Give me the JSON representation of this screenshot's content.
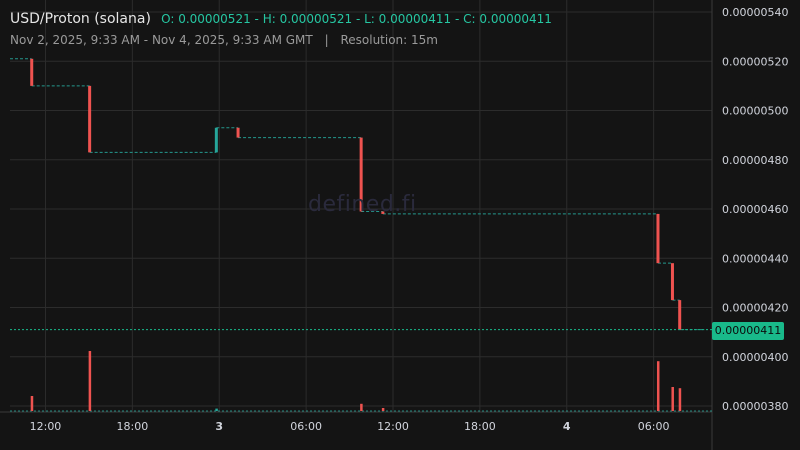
{
  "header": {
    "pair": "USD/Proton (solana)",
    "open_label": "O:",
    "open": "0.00000521",
    "high_label": "H:",
    "high": "0.00000521",
    "low_label": "L:",
    "low": "0.00000411",
    "close_label": "C:",
    "close": "0.00000411",
    "date_range": "Nov 2, 2025, 9:33 AM - Nov 4, 2025, 9:33 AM GMT",
    "separator": "|",
    "resolution": "Resolution: 15m"
  },
  "watermark": "defined.fi",
  "last_price_label": "0.00000411",
  "colors": {
    "background": "#141414",
    "up": "#26a69a",
    "down": "#ef5350",
    "grid": "#2c2c2c",
    "last_price": "#19b98a",
    "text": "#d1d4dc"
  },
  "chart_data": {
    "type": "candlestick",
    "x_ticks": [
      {
        "label": "12:00",
        "hours": 2.45,
        "bold": false
      },
      {
        "label": "18:00",
        "hours": 8.45,
        "bold": false
      },
      {
        "label": "3",
        "hours": 14.45,
        "bold": true
      },
      {
        "label": "06:00",
        "hours": 20.45,
        "bold": false
      },
      {
        "label": "12:00",
        "hours": 26.45,
        "bold": false
      },
      {
        "label": "18:00",
        "hours": 32.45,
        "bold": false
      },
      {
        "label": "4",
        "hours": 38.45,
        "bold": true
      },
      {
        "label": "06:00",
        "hours": 44.45,
        "bold": false
      }
    ],
    "y_ticks": [
      "0.00000540",
      "0.00000520",
      "0.00000500",
      "0.00000480",
      "0.00000460",
      "0.00000440",
      "0.00000420",
      "0.00000400",
      "0.00000380"
    ],
    "y_tick_values": [
      5.4,
      5.2,
      5.0,
      4.8,
      4.6,
      4.4,
      4.2,
      4.0,
      3.8
    ],
    "y_unit_scale": 1e-06,
    "ylim": [
      3.78,
      5.43
    ],
    "xlim_hours": [
      0,
      48
    ],
    "last_price": 4.11,
    "flat_segments": [
      {
        "x0": 0.0,
        "x1": 1.5,
        "y": 5.21
      },
      {
        "x0": 1.5,
        "x1": 5.5,
        "y": 5.1
      },
      {
        "x0": 5.5,
        "x1": 14.25,
        "y": 4.83
      },
      {
        "x0": 14.25,
        "x1": 15.75,
        "y": 4.93
      },
      {
        "x0": 15.75,
        "x1": 24.25,
        "y": 4.89
      },
      {
        "x0": 24.25,
        "x1": 25.75,
        "y": 4.59
      },
      {
        "x0": 25.75,
        "x1": 44.75,
        "y": 4.58
      },
      {
        "x0": 44.75,
        "x1": 45.75,
        "y": 4.38
      },
      {
        "x0": 45.75,
        "x1": 46.25,
        "y": 4.23
      },
      {
        "x0": 46.25,
        "x1": 48.0,
        "y": 4.11
      }
    ],
    "candles": [
      {
        "t": 1.5,
        "open": 5.21,
        "close": 5.1
      },
      {
        "t": 5.5,
        "open": 5.1,
        "close": 4.83
      },
      {
        "t": 14.25,
        "open": 4.83,
        "close": 4.93
      },
      {
        "t": 15.75,
        "open": 4.93,
        "close": 4.89
      },
      {
        "t": 24.25,
        "open": 4.89,
        "close": 4.59
      },
      {
        "t": 25.75,
        "open": 4.59,
        "close": 4.58
      },
      {
        "t": 44.75,
        "open": 4.58,
        "close": 4.38
      },
      {
        "t": 45.75,
        "open": 4.38,
        "close": 4.23
      },
      {
        "t": 46.25,
        "open": 4.23,
        "close": 4.11
      }
    ],
    "volume": [
      {
        "t": 1.5,
        "v": 0.25,
        "dir": "down"
      },
      {
        "t": 5.5,
        "v": 1.0,
        "dir": "down"
      },
      {
        "t": 14.25,
        "v": 0.04,
        "dir": "up"
      },
      {
        "t": 24.25,
        "v": 0.12,
        "dir": "down"
      },
      {
        "t": 25.75,
        "v": 0.05,
        "dir": "down"
      },
      {
        "t": 44.75,
        "v": 0.83,
        "dir": "down"
      },
      {
        "t": 45.75,
        "v": 0.4,
        "dir": "down"
      },
      {
        "t": 46.25,
        "v": 0.38,
        "dir": "down"
      }
    ]
  }
}
